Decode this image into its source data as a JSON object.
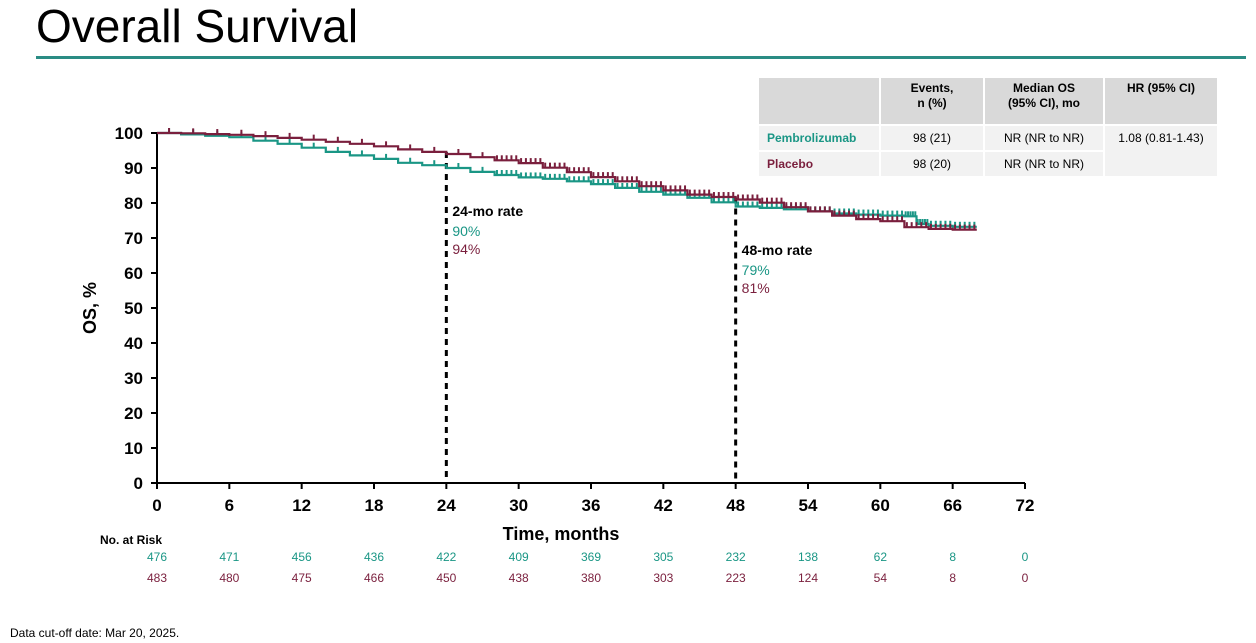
{
  "page": {
    "title": "Overall Survival",
    "footnote": "Data cut-off date: Mar 20, 2025.",
    "accent_color": "#2a8c84"
  },
  "legend_table": {
    "headers": [
      "",
      "Events,\nn (%)",
      "Median OS\n(95% CI), mo",
      "HR (95% CI)"
    ],
    "rows": [
      {
        "arm": "Pembrolizumab",
        "events": "98 (21)",
        "median": "NR (NR to NR)",
        "hr": "1.08 (0.81-1.43)",
        "color": "#1a9685"
      },
      {
        "arm": "Placebo",
        "events": "98 (20)",
        "median": "NR (NR to NR)",
        "hr": "",
        "color": "#7a1f3d"
      }
    ]
  },
  "chart_data": {
    "type": "line",
    "subtype": "kaplan-meier",
    "xlabel": "Time, months",
    "ylabel": "OS, %",
    "xlim": [
      0,
      72
    ],
    "ylim": [
      0,
      100
    ],
    "xticks": [
      0,
      6,
      12,
      18,
      24,
      30,
      36,
      42,
      48,
      54,
      60,
      66,
      72
    ],
    "yticks": [
      0,
      10,
      20,
      30,
      40,
      50,
      60,
      70,
      80,
      90,
      100
    ],
    "series": [
      {
        "name": "Pembrolizumab",
        "color": "#1a9685",
        "x": [
          0,
          2,
          4,
          6,
          8,
          10,
          12,
          14,
          16,
          18,
          20,
          22,
          24,
          26,
          28,
          30,
          32,
          34,
          36,
          38,
          40,
          42,
          44,
          46,
          48,
          50,
          52,
          54,
          56,
          58,
          60,
          62,
          63,
          64,
          66,
          68
        ],
        "y": [
          100,
          99.6,
          99.2,
          98.8,
          97.8,
          96.9,
          95.8,
          94.6,
          93.6,
          92.6,
          91.5,
          90.8,
          90,
          88.9,
          88,
          87.3,
          86.9,
          86.2,
          85.4,
          84.3,
          83.2,
          82.4,
          81.5,
          80.2,
          79,
          78.6,
          78.2,
          77.6,
          77,
          76.7,
          76.4,
          76.2,
          74,
          73.5,
          73.2,
          73.2
        ]
      },
      {
        "name": "Placebo",
        "color": "#7a1f3d",
        "x": [
          0,
          2,
          4,
          6,
          8,
          10,
          12,
          14,
          16,
          18,
          20,
          22,
          24,
          26,
          28,
          30,
          32,
          34,
          36,
          38,
          40,
          42,
          44,
          46,
          48,
          50,
          52,
          54,
          56,
          58,
          60,
          62,
          64,
          66,
          68
        ],
        "y": [
          100,
          99.9,
          99.7,
          99.5,
          99.1,
          98.6,
          98.1,
          97.5,
          96.9,
          96.2,
          95.3,
          94.6,
          94,
          93.1,
          92.2,
          91.4,
          90.1,
          88.8,
          87.4,
          86.2,
          84.8,
          83.6,
          82.4,
          81.7,
          81,
          80.1,
          78.8,
          77.6,
          76.4,
          75.4,
          74.8,
          73.1,
          72.6,
          72.4,
          72.4
        ]
      }
    ],
    "annotations": [
      {
        "month": 24,
        "label": "24-mo rate",
        "pembro": "90%",
        "placebo": "94%"
      },
      {
        "month": 48,
        "label": "48-mo rate",
        "pembro": "79%",
        "placebo": "81%"
      }
    ],
    "risk_table": {
      "title": "No. at Risk",
      "times": [
        0,
        6,
        12,
        18,
        24,
        30,
        36,
        42,
        48,
        54,
        60,
        66,
        72
      ],
      "rows": [
        {
          "name": "Pembrolizumab",
          "values": [
            "476",
            "471",
            "456",
            "436",
            "422",
            "409",
            "369",
            "305",
            "232",
            "138",
            "62",
            "8",
            "0"
          ]
        },
        {
          "name": "Placebo",
          "values": [
            "483",
            "480",
            "475",
            "466",
            "450",
            "438",
            "380",
            "303",
            "223",
            "124",
            "54",
            "8",
            "0"
          ]
        }
      ]
    }
  }
}
